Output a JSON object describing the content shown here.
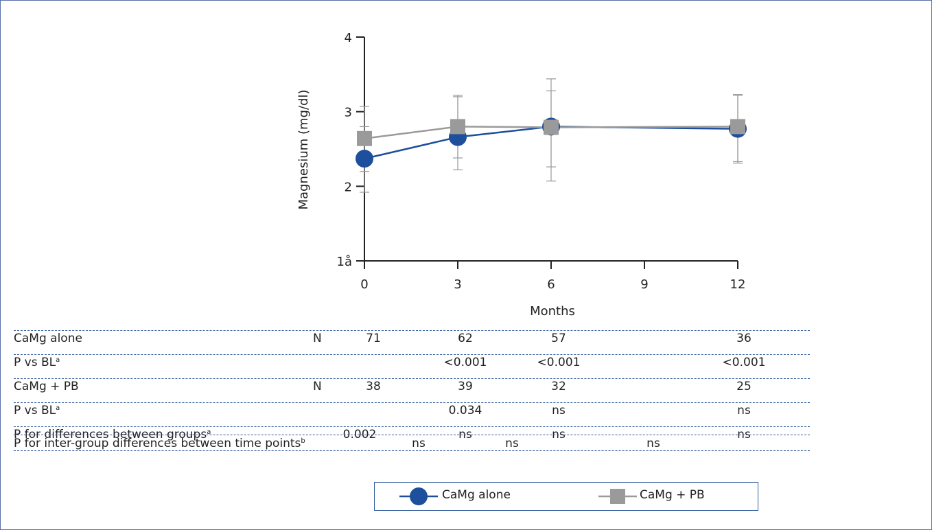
{
  "chart_data": {
    "type": "line",
    "xlabel": "Months",
    "ylabel": "Magnesium (mg/dl)",
    "x_ticks": [
      0,
      3,
      6,
      9,
      12
    ],
    "y_ticks": [
      {
        "value": 1,
        "label": "1å"
      },
      {
        "value": 2,
        "label": "2"
      },
      {
        "value": 3,
        "label": "3"
      },
      {
        "value": 4,
        "label": "4"
      }
    ],
    "xlim": [
      0,
      12
    ],
    "ylim": [
      1,
      4
    ],
    "grid": false,
    "legend_position": "bottom",
    "series": [
      {
        "name": "CaMg alone",
        "color": "#1d4f9c",
        "marker": "circle",
        "x": [
          0,
          3,
          6,
          12
        ],
        "y": [
          2.37,
          2.66,
          2.8,
          2.77
        ],
        "error_low": [
          1.92,
          2.38,
          2.26,
          2.31
        ],
        "error_high": [
          2.8,
          3.2,
          3.28,
          3.22
        ]
      },
      {
        "name": "CaMg + PB",
        "color": "#9a9a9a",
        "marker": "square",
        "x": [
          0,
          3,
          6,
          12
        ],
        "y": [
          2.64,
          2.8,
          2.79,
          2.8
        ],
        "error_low": [
          2.2,
          2.22,
          2.07,
          2.33
        ],
        "error_high": [
          3.07,
          3.22,
          3.44,
          3.23
        ]
      }
    ]
  },
  "table": {
    "rows": [
      {
        "label": "CaMg alone",
        "sup": "",
        "n_label": "N",
        "v0": "71",
        "v3": "62",
        "v6": "57",
        "v12": "36"
      },
      {
        "label": "P vs BL",
        "sup": "a",
        "n_label": "",
        "v0": "",
        "v3": "<0.001",
        "v6": "<0.001",
        "v12": "<0.001"
      },
      {
        "label": "CaMg + PB",
        "sup": "",
        "n_label": "N",
        "v0": "38",
        "v3": "39",
        "v6": "32",
        "v12": "25"
      },
      {
        "label": "P vs BL",
        "sup": "a",
        "n_label": "",
        "v0": "",
        "v3": "0.034",
        "v6": "ns",
        "v12": "ns"
      },
      {
        "label": "P for differences between groups",
        "sup": "a",
        "n_label": "",
        "v0": "0.002",
        "v3": "ns",
        "v6": "ns",
        "v12": "ns"
      }
    ],
    "last_row": {
      "label": "P for inter-group differences between time points",
      "sup": "b",
      "v1": "ns",
      "v2": "ns",
      "v3": "ns"
    }
  },
  "legend": {
    "items": [
      {
        "label": "CaMg alone",
        "color": "#1d4f9c"
      },
      {
        "label": "CaMg + PB",
        "color": "#9a9a9a"
      }
    ]
  }
}
